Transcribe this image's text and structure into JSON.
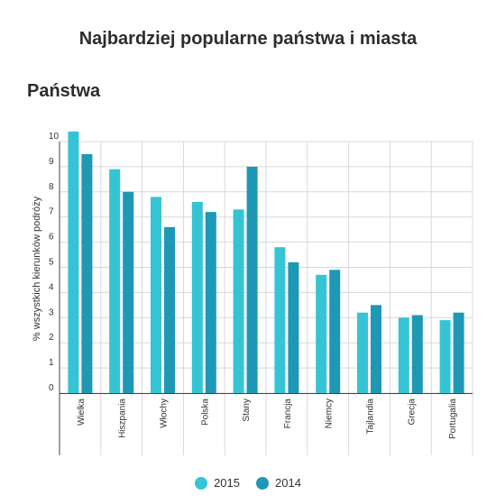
{
  "header": {
    "title": "Najbardziej popularne państwa i miasta",
    "subtitle": "Państwa"
  },
  "colors": {
    "series_2015": "#35c4d4",
    "series_2014": "#1e98b5",
    "grid": "#d8d8d8",
    "axis": "#444444"
  },
  "chart_data": {
    "type": "bar",
    "title": "",
    "ylabel": "% wszystkich kierunków podróży",
    "xlabel": "",
    "ylim": [
      0,
      10
    ],
    "yticks": [
      0,
      1,
      2,
      3,
      4,
      5,
      6,
      7,
      8,
      9,
      10
    ],
    "grid": true,
    "legend_position": "bottom",
    "categories": [
      "Wielka",
      "Hiszpania",
      "Włochy",
      "Polska",
      "Stany",
      "Francja",
      "Niemcy",
      "Tajlandia",
      "Grecja",
      "Portugalia"
    ],
    "series": [
      {
        "name": "2015",
        "values": [
          10.4,
          8.9,
          7.8,
          7.6,
          7.3,
          5.8,
          4.7,
          3.2,
          3.0,
          2.9
        ]
      },
      {
        "name": "2014",
        "values": [
          9.5,
          8.0,
          6.6,
          7.2,
          9.0,
          5.2,
          4.9,
          3.5,
          3.1,
          3.2
        ]
      }
    ]
  }
}
